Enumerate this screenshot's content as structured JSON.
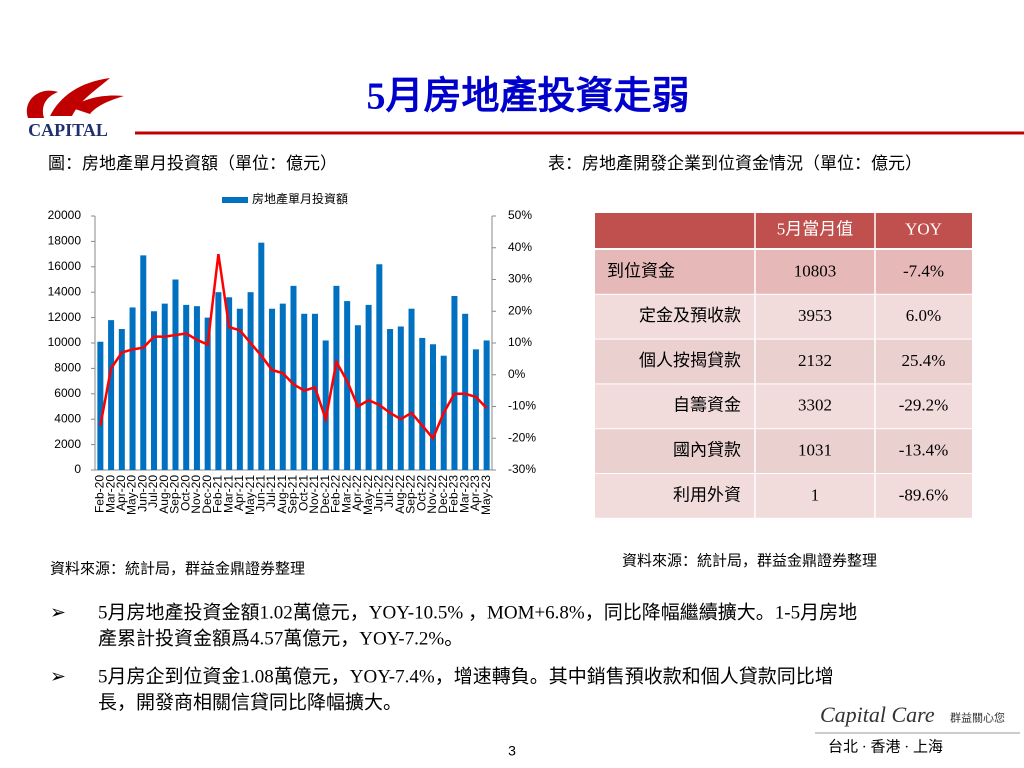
{
  "header": {
    "logo": "CAPITAL",
    "title": "5月房地產投資走弱"
  },
  "chart_caption": "圖：房地產單月投資額（單位：億元）",
  "table_caption": "表：房地產開發企業到位資金情況（單位：億元）",
  "chart_data": {
    "type": "bar",
    "categories": [
      "Feb-20",
      "Mar-20",
      "Apr-20",
      "May-20",
      "Jun-20",
      "Jul-20",
      "Aug-20",
      "Sep-20",
      "Oct-20",
      "Nov-20",
      "Dec-20",
      "Feb-21",
      "Mar-21",
      "Apr-21",
      "May-21",
      "Jun-21",
      "Jul-21",
      "Aug-21",
      "Sep-21",
      "Oct-21",
      "Nov-21",
      "Dec-21",
      "Feb-22",
      "Mar-22",
      "Apr-22",
      "May-22",
      "Jun-22",
      "Jul-22",
      "Aug-22",
      "Sep-22",
      "Oct-22",
      "Nov-22",
      "Dec-22",
      "Feb-23",
      "Mar-23",
      "Apr-23",
      "May-23"
    ],
    "series": [
      {
        "name": "房地產單月投資額",
        "type": "bar",
        "color": "#0070c0",
        "values": [
          10100,
          11800,
          11100,
          12800,
          16900,
          12500,
          13100,
          15000,
          13000,
          12900,
          12000,
          14000,
          13600,
          12700,
          14000,
          17900,
          12700,
          13100,
          14500,
          12300,
          12300,
          10200,
          14500,
          13300,
          11400,
          13000,
          16200,
          11100,
          11300,
          12700,
          10400,
          9900,
          9000,
          13700,
          12300,
          9500,
          10200
        ]
      },
      {
        "type": "line",
        "axis": "y2",
        "color": "#ff0000",
        "values": [
          -16,
          2,
          7,
          8,
          8.5,
          12,
          12,
          12.5,
          13,
          11,
          9.5,
          38,
          15,
          14,
          10,
          6,
          1.5,
          0.5,
          -3,
          -5,
          -4,
          -14,
          4,
          -2,
          -10,
          -8,
          -9.5,
          -12,
          -14,
          -12,
          -16,
          -20,
          -12,
          -6,
          -6,
          -7,
          -10.5
        ]
      }
    ],
    "ylim": [
      0,
      20000
    ],
    "yticks": [
      0,
      2000,
      4000,
      6000,
      8000,
      10000,
      12000,
      14000,
      16000,
      18000,
      20000
    ],
    "y2lim": [
      -30,
      50
    ],
    "y2ticks": [
      {
        "value": -30,
        "label": "-30%"
      },
      {
        "value": -20,
        "label": "-20%"
      },
      {
        "value": -10,
        "label": "-10%"
      },
      {
        "value": 0,
        "label": "0%"
      },
      {
        "value": 10,
        "label": "10%"
      },
      {
        "value": 20,
        "label": "20%"
      },
      {
        "value": 30,
        "label": "30%"
      },
      {
        "value": 40,
        "label": "40%"
      },
      {
        "value": 50,
        "label": "50%"
      }
    ],
    "grid": false,
    "legend": "top"
  },
  "table": {
    "header": [
      "5月當月值",
      "YOY"
    ],
    "rows": [
      [
        "到位資金",
        "10803",
        "-7.4%"
      ],
      [
        "定金及預收款",
        "3953",
        "6.0%"
      ],
      [
        "個人按揭貸款",
        "2132",
        "25.4%"
      ],
      [
        "自籌資金",
        "3302",
        "-29.2%"
      ],
      [
        "國內貸款",
        "1031",
        "-13.4%"
      ],
      [
        "利用外資",
        "1",
        "-89.6%"
      ]
    ]
  },
  "sources": [
    "資料來源：統計局，群益金鼎證券整理",
    "資料來源：統計局，群益金鼎證券整理"
  ],
  "bullets": [
    [
      "5月房地產投資金額1.02萬億元，YOY-10.5% ，MOM+6.8%，同比降幅繼續擴大。1-5月房地",
      "產累計投資金額爲4.57萬億元，YOY-7.2%。"
    ],
    [
      "5月房企到位資金1.08萬億元，YOY-7.4%，增速轉負。其中銷售預收款和個人貸款同比增",
      "長，開發商相關信貸同比降幅擴大。"
    ]
  ],
  "footer": {
    "brand": "Capital Care",
    "slogan": "群益關心您",
    "cities": "台北 · 香港 · 上海",
    "page": "3"
  }
}
